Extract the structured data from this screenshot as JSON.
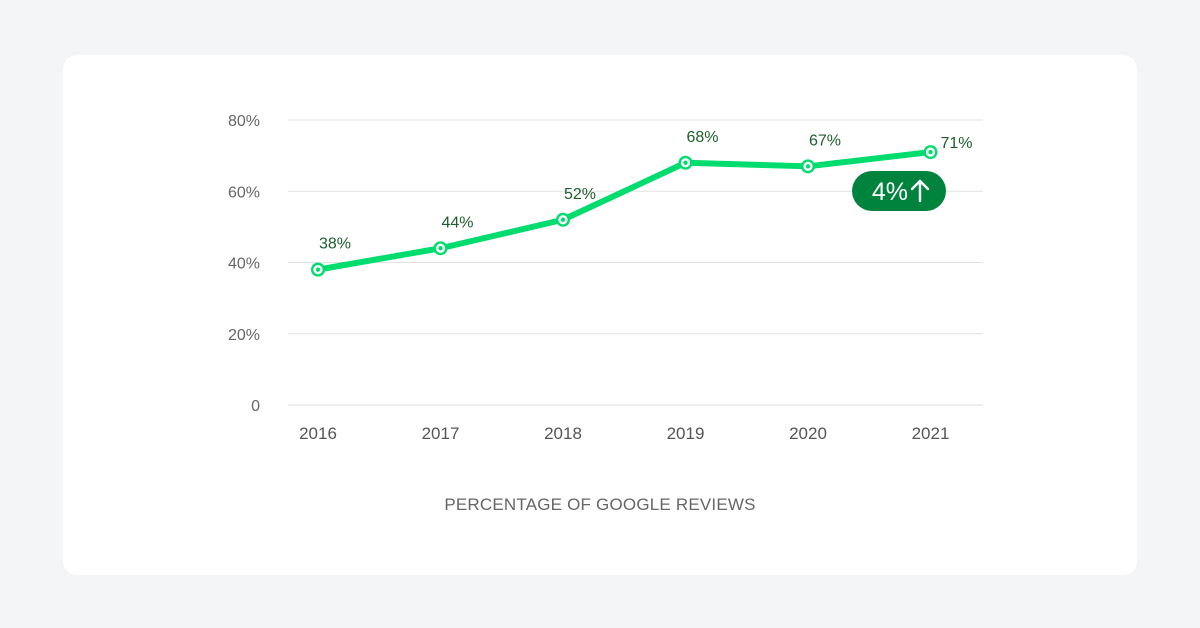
{
  "chart_data": {
    "type": "line",
    "title": "",
    "xlabel": "PERCENTAGE OF GOOGLE REVIEWS",
    "ylabel": "",
    "categories": [
      "2016",
      "2017",
      "2018",
      "2019",
      "2020",
      "2021"
    ],
    "series": [
      {
        "values": [
          38,
          44,
          52,
          68,
          67,
          71
        ],
        "labels": [
          "38%",
          "44%",
          "52%",
          "68%",
          "67%",
          "71%"
        ]
      }
    ],
    "ylim": [
      0,
      80
    ],
    "yticks": [
      0,
      20,
      40,
      60,
      80
    ],
    "ytick_labels": [
      "0",
      "20%",
      "40%",
      "60%",
      "80%"
    ],
    "grid": true,
    "badge": {
      "text": "4%",
      "icon": "arrow-up-icon"
    },
    "colors": {
      "line": "#00dc6e",
      "badge": "#00843d",
      "label": "#1e5e2c"
    }
  }
}
